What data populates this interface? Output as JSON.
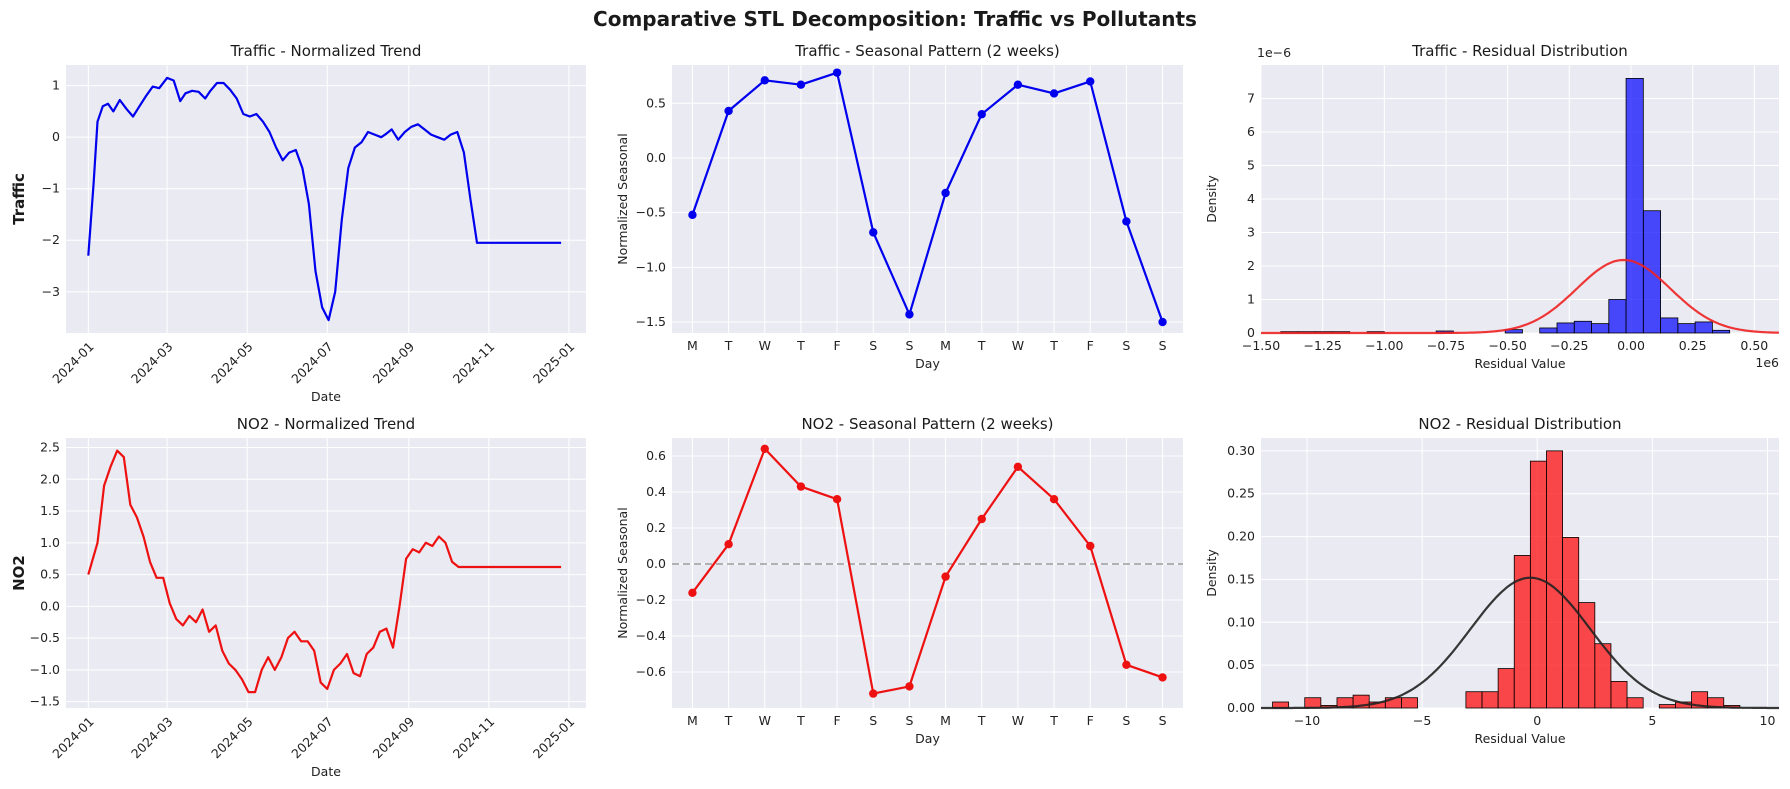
{
  "title": "Comparative STL Decomposition: Traffic vs Pollutants",
  "chart_data": [
    {
      "type": "line",
      "title": "Traffic - Normalized Trend",
      "xlabel": "Date",
      "ylabel": "Traffic",
      "ylim": [
        -3.8,
        1.4
      ],
      "yticks": [
        1,
        0,
        -1,
        -2,
        -3
      ],
      "xticklabels": [
        "2024-01",
        "2024-03",
        "2024-05",
        "2024-07",
        "2024-09",
        "2024-11",
        "2025-01"
      ],
      "xdomain": [
        "2023-12-15",
        "2025-01-14"
      ],
      "color": "#0000ee",
      "grid": true,
      "x": [
        "2024-01-01",
        "2024-01-05",
        "2024-01-08",
        "2024-01-12",
        "2024-01-16",
        "2024-01-20",
        "2024-01-25",
        "2024-01-30",
        "2024-02-04",
        "2024-02-09",
        "2024-02-14",
        "2024-02-19",
        "2024-02-24",
        "2024-03-01",
        "2024-03-06",
        "2024-03-11",
        "2024-03-15",
        "2024-03-20",
        "2024-03-25",
        "2024-03-30",
        "2024-04-03",
        "2024-04-08",
        "2024-04-13",
        "2024-04-18",
        "2024-04-23",
        "2024-04-28",
        "2024-05-03",
        "2024-05-08",
        "2024-05-13",
        "2024-05-18",
        "2024-05-23",
        "2024-05-28",
        "2024-06-02",
        "2024-06-07",
        "2024-06-12",
        "2024-06-17",
        "2024-06-22",
        "2024-06-27",
        "2024-07-02",
        "2024-07-07",
        "2024-07-12",
        "2024-07-17",
        "2024-07-22",
        "2024-07-27",
        "2024-08-01",
        "2024-08-06",
        "2024-08-11",
        "2024-08-14",
        "2024-08-19",
        "2024-08-24",
        "2024-08-29",
        "2024-09-03",
        "2024-09-08",
        "2024-09-13",
        "2024-09-18",
        "2024-09-23",
        "2024-09-28",
        "2024-10-03",
        "2024-10-08",
        "2024-10-13",
        "2024-10-18",
        "2024-10-23",
        "2024-10-28",
        "2024-11-02",
        "2024-11-07",
        "2024-11-12",
        "2024-11-17",
        "2024-11-22",
        "2024-11-27",
        "2024-12-02",
        "2024-12-07",
        "2024-12-12",
        "2024-12-17",
        "2024-12-22",
        "2024-12-26"
      ],
      "values": [
        -2.3,
        -0.9,
        0.3,
        0.6,
        0.65,
        0.5,
        0.72,
        0.55,
        0.4,
        0.6,
        0.8,
        0.98,
        0.95,
        1.15,
        1.1,
        0.7,
        0.85,
        0.9,
        0.88,
        0.75,
        0.9,
        1.05,
        1.05,
        0.92,
        0.75,
        0.45,
        0.4,
        0.45,
        0.3,
        0.1,
        -0.2,
        -0.45,
        -0.3,
        -0.25,
        -0.6,
        -1.3,
        -2.6,
        -3.3,
        -3.55,
        -3.0,
        -1.6,
        -0.6,
        -0.2,
        -0.1,
        0.1,
        0.05,
        0.0,
        0.05,
        0.15,
        -0.05,
        0.1,
        0.2,
        0.25,
        0.15,
        0.05,
        0.0,
        -0.05,
        0.05,
        0.1,
        -0.3,
        -1.2,
        -2.05,
        -2.05,
        -2.05,
        -2.05,
        -2.05,
        -2.05,
        -2.05,
        -2.05,
        -2.05,
        -2.05,
        -2.05,
        -2.05,
        -2.05,
        -2.05
      ]
    },
    {
      "type": "line",
      "title": "Traffic - Seasonal Pattern (2 weeks)",
      "xlabel": "Day",
      "ylabel": "Normalized Seasonal",
      "categories": [
        "M",
        "T",
        "W",
        "T",
        "F",
        "S",
        "S",
        "M",
        "T",
        "W",
        "T",
        "F",
        "S",
        "S"
      ],
      "values": [
        -0.52,
        0.43,
        0.71,
        0.67,
        0.78,
        -0.68,
        -1.43,
        -0.32,
        0.4,
        0.67,
        0.59,
        0.7,
        -0.58,
        -1.5
      ],
      "ylim": [
        -1.6,
        0.85
      ],
      "yticks": [
        0.5,
        0.0,
        -0.5,
        -1.0,
        -1.5
      ],
      "ytickfmt": 1,
      "color": "#0000ee",
      "grid": true
    },
    {
      "type": "histogram",
      "title": "Traffic - Residual Distribution",
      "xlabel": "Residual Value",
      "ylabel": "Density",
      "x_exponent": "1e6",
      "y_exponent": "1e−6",
      "xlim": [
        -1.5,
        0.6
      ],
      "ylim": [
        0,
        8.0
      ],
      "xticks": [
        -1.5,
        -1.25,
        -1.0,
        -0.75,
        -0.5,
        -0.25,
        0.0,
        0.25,
        0.5
      ],
      "xtickfmt": 2,
      "yticks": [
        0,
        1,
        2,
        3,
        4,
        5,
        6,
        7
      ],
      "bin_edges": [
        -1.42,
        -1.35,
        -1.28,
        -1.21,
        -1.14,
        -1.07,
        -1.0,
        -0.93,
        -0.86,
        -0.79,
        -0.72,
        -0.65,
        -0.58,
        -0.51,
        -0.44,
        -0.37,
        -0.3,
        -0.23,
        -0.16,
        -0.09,
        -0.02,
        0.05,
        0.12,
        0.19,
        0.26,
        0.33,
        0.4
      ],
      "density": [
        0.04,
        0.04,
        0.04,
        0.04,
        0.0,
        0.04,
        0.0,
        0.0,
        0.0,
        0.06,
        0.0,
        0.0,
        0.0,
        0.1,
        0.0,
        0.15,
        0.3,
        0.35,
        0.28,
        1.0,
        7.6,
        3.65,
        0.45,
        0.28,
        0.33,
        0.08
      ],
      "bar_color": "#0000ff",
      "curve_color": "#ee2222",
      "curve": {
        "mean": -0.03,
        "std": 0.19
      },
      "grid": true
    },
    {
      "type": "line",
      "title": "NO2 - Normalized Trend",
      "xlabel": "Date",
      "ylabel": "NO2",
      "ylim": [
        -1.6,
        2.65
      ],
      "yticks": [
        2.5,
        2.0,
        1.5,
        1.0,
        0.5,
        0.0,
        -0.5,
        -1.0,
        -1.5
      ],
      "ytickfmt": 1,
      "xticklabels": [
        "2024-01",
        "2024-03",
        "2024-05",
        "2024-07",
        "2024-09",
        "2024-11",
        "2025-01"
      ],
      "xdomain": [
        "2023-12-15",
        "2025-01-14"
      ],
      "color": "#ee1111",
      "grid": true,
      "x": [
        "2024-01-01",
        "2024-01-08",
        "2024-01-13",
        "2024-01-18",
        "2024-01-23",
        "2024-01-28",
        "2024-02-02",
        "2024-02-07",
        "2024-02-12",
        "2024-02-17",
        "2024-02-22",
        "2024-02-27",
        "2024-03-03",
        "2024-03-08",
        "2024-03-13",
        "2024-03-18",
        "2024-03-23",
        "2024-03-28",
        "2024-04-02",
        "2024-04-07",
        "2024-04-12",
        "2024-04-17",
        "2024-04-22",
        "2024-04-27",
        "2024-05-02",
        "2024-05-07",
        "2024-05-12",
        "2024-05-17",
        "2024-05-22",
        "2024-05-27",
        "2024-06-01",
        "2024-06-06",
        "2024-06-11",
        "2024-06-16",
        "2024-06-21",
        "2024-06-26",
        "2024-07-01",
        "2024-07-06",
        "2024-07-11",
        "2024-07-16",
        "2024-07-21",
        "2024-07-26",
        "2024-07-31",
        "2024-08-05",
        "2024-08-10",
        "2024-08-15",
        "2024-08-20",
        "2024-08-25",
        "2024-08-30",
        "2024-09-04",
        "2024-09-09",
        "2024-09-14",
        "2024-09-19",
        "2024-09-24",
        "2024-09-29",
        "2024-10-04",
        "2024-10-09",
        "2024-10-14",
        "2024-10-19",
        "2024-10-24",
        "2024-10-29",
        "2024-11-03",
        "2024-11-08",
        "2024-11-13",
        "2024-11-18",
        "2024-11-23",
        "2024-11-28",
        "2024-12-03",
        "2024-12-08",
        "2024-12-13",
        "2024-12-18",
        "2024-12-26"
      ],
      "values": [
        0.5,
        1.0,
        1.9,
        2.2,
        2.45,
        2.35,
        1.6,
        1.4,
        1.1,
        0.7,
        0.45,
        0.45,
        0.05,
        -0.2,
        -0.3,
        -0.15,
        -0.25,
        -0.05,
        -0.4,
        -0.3,
        -0.7,
        -0.9,
        -1.0,
        -1.15,
        -1.35,
        -1.35,
        -1.0,
        -0.8,
        -1.0,
        -0.8,
        -0.5,
        -0.4,
        -0.55,
        -0.55,
        -0.7,
        -1.2,
        -1.3,
        -1.0,
        -0.9,
        -0.75,
        -1.05,
        -1.1,
        -0.75,
        -0.65,
        -0.4,
        -0.35,
        -0.65,
        0.0,
        0.75,
        0.9,
        0.85,
        1.0,
        0.95,
        1.1,
        1.0,
        0.7,
        0.62,
        0.62,
        0.62,
        0.62,
        0.62,
        0.62,
        0.62,
        0.62,
        0.62,
        0.62,
        0.62,
        0.62,
        0.62,
        0.62,
        0.62,
        0.62
      ]
    },
    {
      "type": "line",
      "title": "NO2 - Seasonal Pattern (2 weeks)",
      "xlabel": "Day",
      "ylabel": "Normalized Seasonal",
      "categories": [
        "M",
        "T",
        "W",
        "T",
        "F",
        "S",
        "S",
        "M",
        "T",
        "W",
        "T",
        "F",
        "S",
        "S"
      ],
      "values": [
        -0.16,
        0.11,
        0.64,
        0.43,
        0.36,
        -0.72,
        -0.68,
        -0.07,
        0.25,
        0.54,
        0.36,
        0.1,
        -0.56,
        -0.63
      ],
      "ylim": [
        -0.8,
        0.7
      ],
      "yticks": [
        0.6,
        0.4,
        0.2,
        0.0,
        -0.2,
        -0.4,
        -0.6
      ],
      "ytickfmt": 1,
      "zero_line": true,
      "color": "#ee1111",
      "grid": true
    },
    {
      "type": "histogram",
      "title": "NO2 - Residual Distribution",
      "xlabel": "Residual Value",
      "ylabel": "Density",
      "xlim": [
        -12,
        10.5
      ],
      "ylim": [
        0,
        0.315
      ],
      "xticks": [
        -10,
        -5,
        0,
        5,
        10
      ],
      "yticks": [
        0.0,
        0.05,
        0.1,
        0.15,
        0.2,
        0.25,
        0.3
      ],
      "ytickfmt": 2,
      "bin_edges": [
        -11.5,
        -10.8,
        -10.1,
        -9.4,
        -8.7,
        -8.0,
        -7.3,
        -6.6,
        -5.9,
        -5.2,
        -4.5,
        -3.8,
        -3.1,
        -2.4,
        -1.7,
        -1.0,
        -0.3,
        0.4,
        1.1,
        1.8,
        2.5,
        3.2,
        3.9,
        4.6,
        5.3,
        6.0,
        6.7,
        7.4,
        8.1,
        8.8,
        9.5
      ],
      "density": [
        0.007,
        0.0,
        0.012,
        0.003,
        0.012,
        0.015,
        0.007,
        0.012,
        0.012,
        0.0,
        0.0,
        0.0,
        0.019,
        0.019,
        0.046,
        0.178,
        0.288,
        0.3,
        0.199,
        0.123,
        0.075,
        0.031,
        0.012,
        0.0,
        0.004,
        0.007,
        0.019,
        0.012,
        0.003,
        0.0
      ],
      "bar_color": "#ff0000",
      "curve_color": "#222222",
      "curve": {
        "mean": -0.3,
        "std": 2.6
      },
      "grid": true
    }
  ]
}
